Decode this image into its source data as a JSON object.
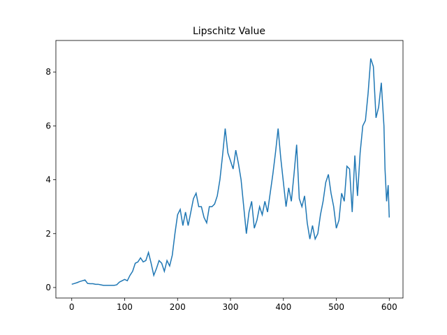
{
  "chart_data": {
    "type": "line",
    "title": "Lipschitz Value",
    "x": [
      0,
      5,
      10,
      15,
      20,
      25,
      30,
      35,
      40,
      45,
      50,
      55,
      60,
      65,
      70,
      75,
      80,
      85,
      90,
      95,
      100,
      105,
      110,
      115,
      120,
      125,
      130,
      135,
      140,
      145,
      150,
      155,
      160,
      165,
      170,
      175,
      180,
      185,
      190,
      195,
      200,
      205,
      210,
      215,
      220,
      225,
      230,
      235,
      240,
      245,
      250,
      255,
      260,
      265,
      270,
      275,
      280,
      285,
      290,
      295,
      300,
      305,
      310,
      315,
      320,
      325,
      330,
      335,
      340,
      345,
      350,
      355,
      360,
      365,
      370,
      375,
      380,
      385,
      390,
      395,
      400,
      405,
      410,
      415,
      420,
      425,
      430,
      435,
      440,
      445,
      450,
      455,
      460,
      465,
      470,
      475,
      480,
      485,
      490,
      495,
      500,
      505,
      510,
      515,
      520,
      525,
      530,
      535,
      540,
      545,
      550,
      555,
      560,
      565,
      570,
      575,
      580,
      585,
      590,
      592,
      595,
      598,
      600
    ],
    "series": [
      {
        "name": "Lipschitz Value",
        "color": "#1f77b4",
        "values": [
          0.12,
          0.15,
          0.18,
          0.22,
          0.25,
          0.28,
          0.15,
          0.14,
          0.14,
          0.12,
          0.12,
          0.1,
          0.08,
          0.08,
          0.08,
          0.08,
          0.08,
          0.1,
          0.2,
          0.25,
          0.3,
          0.25,
          0.45,
          0.6,
          0.9,
          0.95,
          1.1,
          0.95,
          1.0,
          1.3,
          0.9,
          0.45,
          0.7,
          1.0,
          0.9,
          0.6,
          1.0,
          0.8,
          1.2,
          2.0,
          2.7,
          2.9,
          2.3,
          2.8,
          2.3,
          2.8,
          3.3,
          3.5,
          3.0,
          3.0,
          2.6,
          2.4,
          3.0,
          3.0,
          3.1,
          3.4,
          4.0,
          4.9,
          5.9,
          5.0,
          4.7,
          4.4,
          5.1,
          4.6,
          4.0,
          3.0,
          2.0,
          2.8,
          3.2,
          2.2,
          2.5,
          3.0,
          2.7,
          3.2,
          2.8,
          3.5,
          4.2,
          5.0,
          5.9,
          4.8,
          3.9,
          3.0,
          3.7,
          3.2,
          4.2,
          5.3,
          3.3,
          3.0,
          3.4,
          2.4,
          1.8,
          2.3,
          1.8,
          2.0,
          2.7,
          3.2,
          3.9,
          4.2,
          3.5,
          3.0,
          2.2,
          2.5,
          3.5,
          3.2,
          4.5,
          4.4,
          2.8,
          4.9,
          3.4,
          5.0,
          6.0,
          6.2,
          7.2,
          8.5,
          8.2,
          6.3,
          6.7,
          7.6,
          6.0,
          4.4,
          3.2,
          3.8,
          2.6
        ]
      }
    ],
    "xlim": [
      -30,
      626
    ],
    "ylim": [
      -0.39,
      9.17
    ],
    "xticks": [
      0,
      100,
      200,
      300,
      400,
      500,
      600
    ],
    "yticks": [
      0,
      2,
      4,
      6,
      8
    ]
  }
}
